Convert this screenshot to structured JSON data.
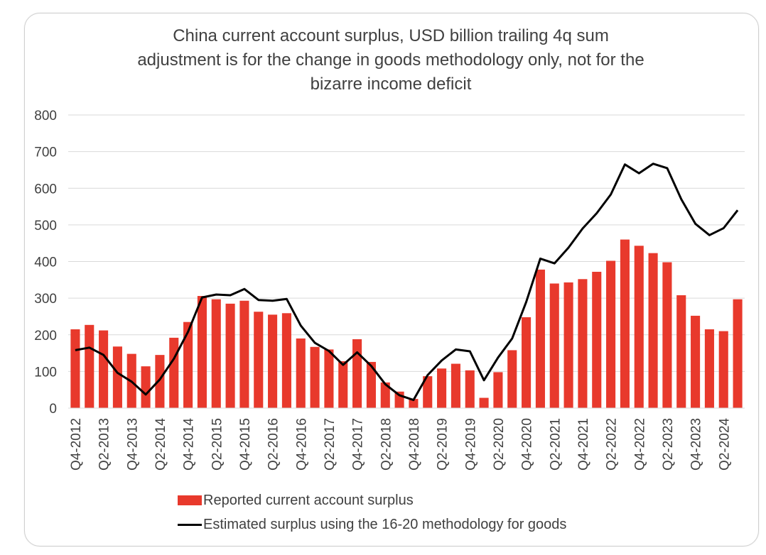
{
  "colors": {
    "bar": "#e8392c",
    "line": "#000000",
    "grid": "#d9d9d9",
    "text": "#404040"
  },
  "chart_data": {
    "type": "bar",
    "title_lines": [
      "China current account surplus, USD billion trailing 4q sum",
      "adjustment is for the change in goods methodology only, not for the",
      "bizarre income deficit"
    ],
    "ylim": [
      0,
      800
    ],
    "yticks": [
      0,
      100,
      200,
      300,
      400,
      500,
      600,
      700,
      800
    ],
    "categories": [
      "Q4-2012",
      "Q1-2013",
      "Q2-2013",
      "Q3-2013",
      "Q4-2013",
      "Q1-2014",
      "Q2-2014",
      "Q3-2014",
      "Q4-2014",
      "Q1-2015",
      "Q2-2015",
      "Q3-2015",
      "Q4-2015",
      "Q1-2016",
      "Q2-2016",
      "Q3-2016",
      "Q4-2016",
      "Q1-2017",
      "Q2-2017",
      "Q3-2017",
      "Q4-2017",
      "Q1-2018",
      "Q2-2018",
      "Q3-2018",
      "Q4-2018",
      "Q1-2019",
      "Q2-2019",
      "Q3-2019",
      "Q4-2019",
      "Q1-2020",
      "Q2-2020",
      "Q3-2020",
      "Q4-2020",
      "Q1-2021",
      "Q2-2021",
      "Q3-2021",
      "Q4-2021",
      "Q1-2022",
      "Q2-2022",
      "Q3-2022",
      "Q4-2022",
      "Q1-2023",
      "Q2-2023",
      "Q3-2023",
      "Q4-2023",
      "Q1-2024",
      "Q2-2024",
      "Q3-2024"
    ],
    "tick_labels": [
      "Q4-2012",
      "Q2-2013",
      "Q4-2013",
      "Q2-2014",
      "Q4-2014",
      "Q2-2015",
      "Q4-2015",
      "Q2-2016",
      "Q4-2016",
      "Q2-2017",
      "Q4-2017",
      "Q2-2018",
      "Q4-2018",
      "Q2-2019",
      "Q4-2019",
      "Q2-2020",
      "Q4-2020",
      "Q2-2021",
      "Q4-2021",
      "Q2-2022",
      "Q4-2022",
      "Q2-2023",
      "Q4-2023",
      "Q2-2024"
    ],
    "series": [
      {
        "name": "Reported current account surplus",
        "type": "bar",
        "values": [
          215,
          227,
          212,
          168,
          148,
          114,
          145,
          192,
          235,
          306,
          297,
          285,
          293,
          263,
          255,
          259,
          190,
          167,
          160,
          128,
          188,
          126,
          70,
          45,
          25,
          87,
          108,
          121,
          103,
          28,
          98,
          158,
          248,
          378,
          340,
          343,
          352,
          372,
          402,
          460,
          443,
          423,
          398,
          308,
          252,
          215,
          210,
          297
        ]
      },
      {
        "name": "Estimated surplus using the 16-20 methodology for goods",
        "type": "line",
        "values": [
          158,
          165,
          145,
          96,
          72,
          37,
          78,
          135,
          208,
          302,
          310,
          308,
          325,
          295,
          293,
          298,
          225,
          178,
          156,
          118,
          152,
          115,
          65,
          35,
          22,
          90,
          130,
          160,
          155,
          76,
          138,
          190,
          290,
          408,
          395,
          438,
          490,
          532,
          583,
          665,
          641,
          667,
          655,
          570,
          503,
          472,
          491,
          540
        ]
      }
    ],
    "legend_position": "bottom",
    "grid": true
  }
}
